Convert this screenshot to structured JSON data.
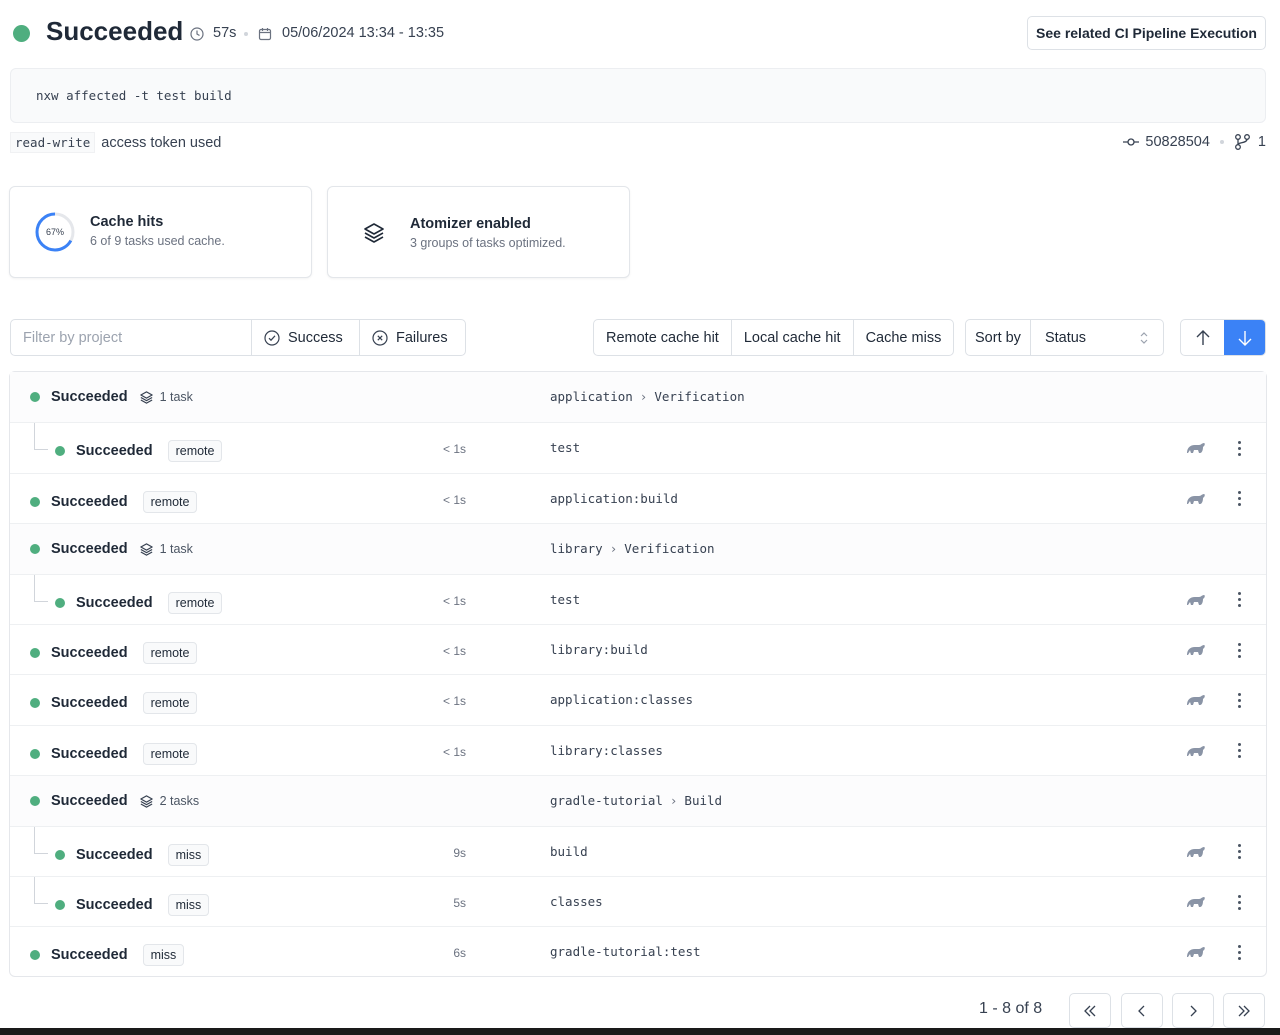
{
  "header": {
    "status": "Succeeded",
    "status_color": "#4fae7f",
    "duration": "57s",
    "date_range": "05/06/2024 13:34 - 13:35",
    "related_button": "See related CI Pipeline Execution"
  },
  "command": "nxw affected -t test build",
  "access": {
    "token_type": "read-write",
    "label": "access token used"
  },
  "commit": {
    "sha": "50828504",
    "branch_count": "1"
  },
  "cards": {
    "cache": {
      "percent": 67,
      "percent_label": "67%",
      "title": "Cache hits",
      "subtitle": "6 of 9 tasks used cache."
    },
    "atomizer": {
      "title": "Atomizer enabled",
      "subtitle": "3 groups of tasks optimized."
    }
  },
  "filters": {
    "project_placeholder": "Filter by project",
    "success": "Success",
    "failures": "Failures",
    "cache": [
      "Remote cache hit",
      "Local cache hit",
      "Cache miss"
    ],
    "sort_label": "Sort by",
    "sort_value": "Status",
    "accent": "#3b82f6"
  },
  "rows": [
    {
      "level": "group",
      "status": "Succeeded",
      "count": "1 task",
      "target": "application",
      "group": "Verification"
    },
    {
      "level": "child",
      "status": "Succeeded",
      "badge": "remote",
      "duration": "< 1s",
      "target": "test"
    },
    {
      "level": "task",
      "status": "Succeeded",
      "badge": "remote",
      "duration": "< 1s",
      "target": "application:build"
    },
    {
      "level": "group",
      "status": "Succeeded",
      "count": "1 task",
      "target": "library",
      "group": "Verification"
    },
    {
      "level": "child",
      "status": "Succeeded",
      "badge": "remote",
      "duration": "< 1s",
      "target": "test"
    },
    {
      "level": "task",
      "status": "Succeeded",
      "badge": "remote",
      "duration": "< 1s",
      "target": "library:build"
    },
    {
      "level": "task",
      "status": "Succeeded",
      "badge": "remote",
      "duration": "< 1s",
      "target": "application:classes"
    },
    {
      "level": "task",
      "status": "Succeeded",
      "badge": "remote",
      "duration": "< 1s",
      "target": "library:classes"
    },
    {
      "level": "group",
      "status": "Succeeded",
      "count": "2 tasks",
      "target": "gradle-tutorial",
      "group": "Build"
    },
    {
      "level": "child",
      "status": "Succeeded",
      "badge": "miss",
      "duration": "9s",
      "target": "build"
    },
    {
      "level": "child",
      "status": "Succeeded",
      "badge": "miss",
      "duration": "5s",
      "target": "classes"
    },
    {
      "level": "task",
      "status": "Succeeded",
      "badge": "miss",
      "duration": "6s",
      "target": "gradle-tutorial:test"
    }
  ],
  "pagination": {
    "label": "1 - 8 of 8"
  }
}
